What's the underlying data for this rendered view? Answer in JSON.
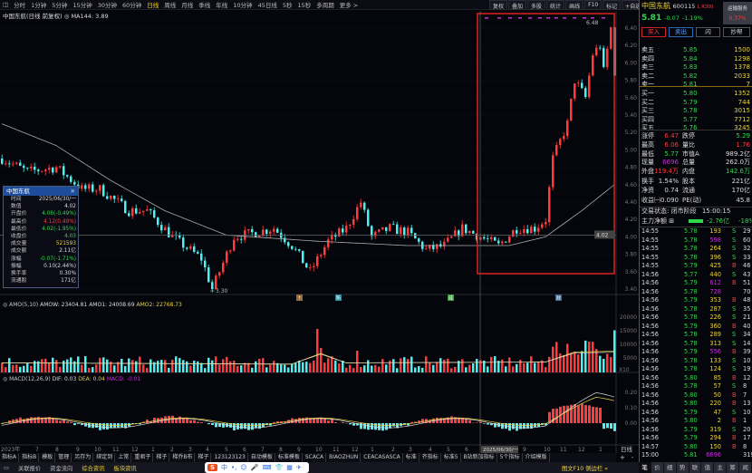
{
  "toolbar": {
    "periods": [
      "分时",
      "1分钟",
      "5分钟",
      "15分钟",
      "30分钟",
      "60分钟",
      "日线",
      "周线",
      "月线",
      "季线",
      "年线",
      "10分钟",
      "45日线",
      "5秒",
      "15秒",
      "多周期",
      "更多 >"
    ],
    "active": "日线",
    "tools": [
      "复权",
      "叠加",
      "多股",
      "统计",
      "画线",
      "F10",
      "标记",
      "+自选",
      "返回"
    ]
  },
  "chart": {
    "subtitle": "中国东航(日线 前复权) ◎ MA144: 3.89",
    "max_label": "6.48",
    "min_label": "3.30",
    "crosshair_price": "4.02",
    "price_ticks": [
      "6.40",
      "6.20",
      "6.00",
      "5.80",
      "5.60",
      "5.40",
      "5.20",
      "5.00",
      "4.80",
      "4.60",
      "4.40",
      "4.20",
      "4.00",
      "3.80",
      "3.60",
      "3.40"
    ],
    "markers": [
      "↑",
      "新",
      "威",
      "财"
    ]
  },
  "tooltip": {
    "title": "中国东航",
    "rows": [
      {
        "k": "时间",
        "v": "2025/06/30/一",
        "c": "w"
      },
      {
        "k": "数值",
        "v": "4.02",
        "c": "w"
      },
      {
        "k": "开盘价",
        "v": "4.08(-0.49%)",
        "c": "g"
      },
      {
        "k": "最高价",
        "v": "4.12(0.49%)",
        "c": "rd"
      },
      {
        "k": "最低价",
        "v": "4.02(-1.95%)",
        "c": "g"
      },
      {
        "k": "收盘价",
        "v": "4.03",
        "c": "g"
      },
      {
        "k": "成交量",
        "v": "521593",
        "c": "y"
      },
      {
        "k": "成交额",
        "v": "2.11亿",
        "c": "w"
      },
      {
        "k": "涨幅",
        "v": "-0.07(-1.71%)",
        "c": "g"
      },
      {
        "k": "振幅",
        "v": "0.10(2.44%)",
        "c": "w"
      },
      {
        "k": "换手率",
        "v": "0.30%",
        "c": "w"
      },
      {
        "k": "流通股",
        "v": "171亿",
        "c": "w"
      }
    ]
  },
  "volume": {
    "label": "◎ AMO(5,10)",
    "amow": "AMOW: 23404.81",
    "amo1": "AMO1: 24008.69",
    "amo2": "AMO2: 22768.73",
    "ticks": [
      "20000",
      "15000",
      "10000",
      "5000"
    ],
    "unit": "X10"
  },
  "macd": {
    "label": "◎ MACD(12,26,9)",
    "dif": "DIF: 0.03",
    "dea": "DEA: 0.04",
    "macd": "MACD: -0.01",
    "ticks": [
      "0.20",
      "0.10",
      "0.00"
    ]
  },
  "dates": {
    "labels": [
      "2023年",
      "7",
      "8",
      "9",
      "10",
      "11",
      "12",
      "1",
      "2",
      "3",
      "4",
      "5",
      "6",
      "7",
      "8",
      "9",
      "10",
      "11",
      "12",
      "1",
      "2",
      "3",
      "4",
      "5",
      "6",
      "9",
      "10",
      "11",
      "12",
      "1"
    ],
    "current": "2025/06/30/一",
    "period": "日线"
  },
  "chart_data": {
    "type": "candlestick",
    "close_path": [
      [
        0,
        4.9
      ],
      [
        7,
        4.75
      ],
      [
        15,
        4.8
      ],
      [
        22,
        4.55
      ],
      [
        27,
        4.55
      ],
      [
        35,
        4.3
      ],
      [
        40,
        4.3
      ],
      [
        47,
        4.0
      ],
      [
        55,
        3.75
      ],
      [
        58,
        3.4
      ],
      [
        61,
        3.7
      ],
      [
        64,
        4.0
      ],
      [
        70,
        4.05
      ],
      [
        75,
        4.1
      ],
      [
        80,
        3.9
      ],
      [
        85,
        3.6
      ],
      [
        90,
        3.95
      ],
      [
        95,
        4.1
      ],
      [
        99,
        4.4
      ],
      [
        102,
        4.0
      ],
      [
        107,
        4.1
      ],
      [
        112,
        4.05
      ],
      [
        117,
        3.85
      ],
      [
        122,
        3.9
      ],
      [
        127,
        4.1
      ],
      [
        132,
        4.0
      ],
      [
        137,
        3.9
      ],
      [
        142,
        4.1
      ],
      [
        147,
        4.1
      ],
      [
        150,
        4.2
      ],
      [
        152,
        4.9
      ],
      [
        156,
        5.3
      ],
      [
        158,
        5.8
      ],
      [
        161,
        5.6
      ],
      [
        163,
        6.1
      ],
      [
        165,
        6.2
      ],
      [
        166,
        5.9
      ],
      [
        168,
        6.4
      ],
      [
        169,
        5.9
      ]
    ],
    "ma144_path": [
      [
        0,
        5.3
      ],
      [
        15,
        5.05
      ],
      [
        30,
        4.65
      ],
      [
        45,
        4.3
      ],
      [
        62,
        4.02
      ],
      [
        87,
        3.95
      ],
      [
        112,
        3.9
      ],
      [
        140,
        3.9
      ],
      [
        150,
        4.0
      ],
      [
        160,
        4.3
      ],
      [
        169,
        4.6
      ]
    ],
    "ylim": [
      3.4,
      6.4
    ]
  },
  "quote": {
    "name": "中国东航",
    "code": "600115",
    "tag": "L R300",
    "price": "5.81",
    "change": "-0.07",
    "pct": "-1.19%",
    "service": "运输服务",
    "service_pct": "0.37%",
    "buttons": [
      "买入",
      "卖出",
      "闪",
      "抄帮"
    ],
    "asks": [
      [
        "卖五",
        "5.85",
        "1500"
      ],
      [
        "卖四",
        "5.84",
        "1298"
      ],
      [
        "卖三",
        "5.83",
        "1378"
      ],
      [
        "卖二",
        "5.82",
        "2033"
      ],
      [
        "卖一",
        "5.81",
        "7"
      ]
    ],
    "bids": [
      [
        "买一",
        "5.80",
        "1352"
      ],
      [
        "买二",
        "5.79",
        "744"
      ],
      [
        "买三",
        "5.78",
        "3015"
      ],
      [
        "买四",
        "5.77",
        "7712"
      ],
      [
        "买五",
        "5.76",
        "3245"
      ]
    ],
    "stats": [
      [
        [
          "涨停",
          "w"
        ],
        [
          "6.47",
          "rd"
        ],
        [
          "跌停",
          "w"
        ],
        [
          "5.29",
          "g"
        ]
      ],
      [
        [
          "最高",
          "w"
        ],
        [
          "6.06",
          "rd"
        ],
        [
          "量比",
          "w"
        ],
        [
          "1.76",
          "rd"
        ]
      ],
      [
        [
          "最低",
          "w"
        ],
        [
          "5.77",
          "g"
        ],
        [
          "市值A",
          "w"
        ],
        [
          "989.2亿",
          "w"
        ]
      ],
      [
        [
          "现量",
          "w"
        ],
        [
          "6696",
          "m"
        ],
        [
          "总量",
          "w"
        ],
        [
          "262.0万",
          "w"
        ]
      ],
      [
        [
          "外盘",
          "w"
        ],
        [
          "119.4万",
          "rd"
        ],
        [
          "内盘",
          "w"
        ],
        [
          "142.6万",
          "g"
        ]
      ],
      [
        [
          "换手",
          "w"
        ],
        [
          "1.54%",
          "w"
        ],
        [
          "股本",
          "w"
        ],
        [
          "221亿",
          "w"
        ]
      ],
      [
        [
          "净资",
          "w"
        ],
        [
          "0.74",
          "w"
        ],
        [
          "流通",
          "w"
        ],
        [
          "170亿",
          "w"
        ]
      ],
      [
        [
          "收益㈠",
          "w"
        ],
        [
          "0.090",
          "w"
        ],
        [
          "PE(动)",
          "w"
        ],
        [
          "45.8",
          "w"
        ]
      ]
    ],
    "status": "交易状态: 闭市阶段",
    "status_time": "15:00:15",
    "main_flow": "主力净额 ⊞",
    "main_flow_val": "-2.76亿",
    "main_flow_pct": "-18%"
  },
  "trades": [
    [
      "14:55",
      "5.78",
      "193",
      "S",
      "29"
    ],
    [
      "14:55",
      "5.78",
      "598",
      "S",
      "60"
    ],
    [
      "14:55",
      "5.78",
      "264",
      "S",
      "32"
    ],
    [
      "14:55",
      "5.78",
      "396",
      "S",
      "33"
    ],
    [
      "14:55",
      "5.79",
      "425",
      "B",
      "46"
    ],
    [
      "14:56",
      "5.77",
      "440",
      "S",
      "43"
    ],
    [
      "14:56",
      "5.79",
      "612",
      "B",
      "51"
    ],
    [
      "14:56",
      "5.78",
      "728",
      "",
      "70"
    ],
    [
      "14:56",
      "5.79",
      "353",
      "B",
      "48"
    ],
    [
      "14:56",
      "5.78",
      "287",
      "S",
      "35"
    ],
    [
      "14:56",
      "5.78",
      "226",
      "S",
      "21"
    ],
    [
      "14:56",
      "5.79",
      "360",
      "B",
      "40"
    ],
    [
      "14:56",
      "5.78",
      "289",
      "S",
      "34"
    ],
    [
      "14:56",
      "5.78",
      "313",
      "S",
      "14"
    ],
    [
      "14:56",
      "5.79",
      "556",
      "B",
      "39"
    ],
    [
      "14:56",
      "5.78",
      "133",
      "S",
      "10"
    ],
    [
      "14:56",
      "5.78",
      "124",
      "S",
      "19"
    ],
    [
      "14:56",
      "5.80",
      "85",
      "B",
      "12"
    ],
    [
      "14:56",
      "5.78",
      "57",
      "S",
      "8"
    ],
    [
      "14:56",
      "5.80",
      "50",
      "B",
      "7"
    ],
    [
      "14:56",
      "5.80",
      "220",
      "B",
      "13"
    ],
    [
      "14:56",
      "5.79",
      "47",
      "S",
      "10"
    ],
    [
      "14:56",
      "5.80",
      "2",
      "B",
      "1"
    ],
    [
      "14:56",
      "5.79",
      "319",
      "S",
      "20"
    ],
    [
      "14:56",
      "5.79",
      "294",
      "B",
      "17"
    ],
    [
      "14:57",
      "5.80",
      "150",
      "B",
      "8"
    ],
    [
      "15:00",
      "5.81",
      "6696",
      "",
      "319"
    ]
  ],
  "indicator_tabs": [
    "指标A",
    "指标B",
    "模板",
    "管理",
    "另存为",
    "绑定到",
    "上常",
    "重君子",
    "梯子",
    "梯乔B布",
    "梯子",
    "123123123",
    "自动模板",
    "标准模板",
    "SCACA",
    "BIAOZHUN",
    "CEACASASCA",
    "标准",
    "齐指标",
    "标准5",
    "B站新加指标",
    "5个指标",
    "介绍模版"
  ],
  "bottom": {
    "items": [
      "关联报价",
      "资金流向",
      "综合资讯",
      "板块资讯"
    ],
    "right": "图文F10 侧边栏 «",
    "zoom_in": "+",
    "zoom_out": "-"
  },
  "right_tabs": [
    "笔",
    "价",
    "细",
    "势",
    "联",
    "值",
    "主",
    "筹",
    "闻"
  ],
  "ime": {
    "logo": "S",
    "items": [
      "中",
      "•,",
      "☺",
      "🎤",
      "⌨",
      "👕",
      "▦",
      "✈"
    ]
  },
  "colors": {
    "up": "#ff3b3b",
    "down": "#4ff0f0",
    "highlight_box": "#e02020",
    "price_green": "#2fd94a"
  }
}
